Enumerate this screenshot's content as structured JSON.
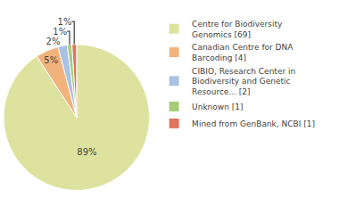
{
  "chart_data": {
    "type": "pie",
    "categories": [
      "Centre for Biodiversity Genomics [69]",
      "Canadian Centre for DNA Barcoding [4]",
      "CIBIO, Research Center in Biodiversity and Genetic Resource... [2]",
      "Unknown [1]",
      "Mined from GenBank, NCBI [1]"
    ],
    "values": [
      89,
      5,
      2,
      1,
      1
    ],
    "value_labels": [
      "89%",
      "5%",
      "2%",
      "1%",
      "1%"
    ],
    "data_labels": true,
    "colors": [
      "#dde39f",
      "#f2b27b",
      "#a9c1e3",
      "#a5cd78",
      "#e0735e"
    ],
    "legend": "right"
  }
}
